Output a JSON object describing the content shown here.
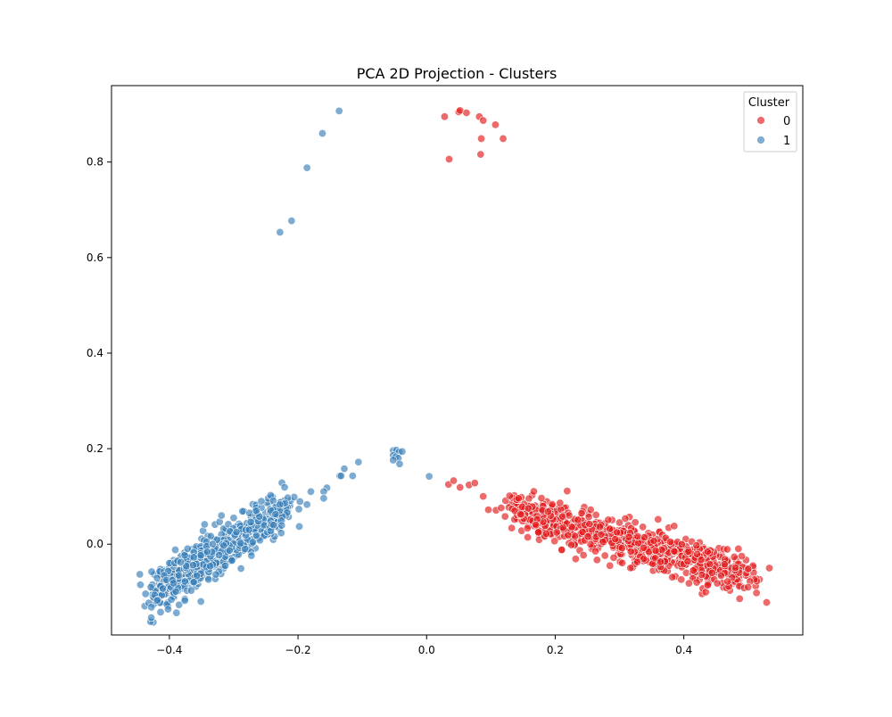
{
  "chart_data": {
    "type": "scatter",
    "title": "PCA 2D Projection - Clusters",
    "xlabel": "",
    "ylabel": "",
    "xlim": [
      -0.49,
      0.585
    ],
    "ylim": [
      -0.19,
      0.96
    ],
    "xticks": [
      -0.4,
      -0.2,
      0.0,
      0.2,
      0.4
    ],
    "yticks": [
      0.0,
      0.2,
      0.4,
      0.6,
      0.8
    ],
    "xtick_labels": [
      "−0.4",
      "−0.2",
      "0.0",
      "0.2",
      "0.4"
    ],
    "ytick_labels": [
      "0.0",
      "0.2",
      "0.4",
      "0.6",
      "0.8"
    ],
    "grid": false,
    "legend": {
      "title": "Cluster",
      "placement": "top-right"
    },
    "series": [
      {
        "name": "0",
        "color": "#e41a1c",
        "points": [
          [
            0.028,
            0.895
          ],
          [
            0.05,
            0.905
          ],
          [
            0.052,
            0.908
          ],
          [
            0.062,
            0.903
          ],
          [
            0.082,
            0.895
          ],
          [
            0.088,
            0.887
          ],
          [
            0.107,
            0.878
          ],
          [
            0.085,
            0.849
          ],
          [
            0.119,
            0.849
          ],
          [
            0.084,
            0.816
          ],
          [
            0.035,
            0.806
          ],
          [
            0.034,
            0.125
          ],
          [
            0.042,
            0.133
          ],
          [
            0.052,
            0.119
          ],
          [
            0.066,
            0.124
          ],
          [
            0.075,
            0.128
          ],
          [
            0.088,
            0.1
          ],
          [
            0.096,
            0.072
          ],
          [
            0.108,
            0.071
          ],
          [
            0.116,
            0.076
          ],
          [
            0.122,
            0.058
          ],
          [
            0.128,
            0.077
          ],
          [
            0.133,
            0.074
          ],
          [
            0.14,
            0.093
          ],
          [
            0.143,
            0.096
          ],
          [
            0.137,
            0.07
          ],
          [
            0.146,
            0.063
          ],
          [
            0.158,
            0.075
          ],
          [
            0.17,
            0.04
          ],
          [
            0.174,
            0.025
          ],
          [
            0.186,
            0.022
          ],
          [
            0.21,
            -0.012
          ],
          [
            0.22,
            0.019
          ],
          [
            0.244,
            -0.023
          ],
          [
            0.265,
            -0.033
          ],
          [
            0.285,
            -0.045
          ],
          [
            0.36,
            0.052
          ],
          [
            0.385,
            0.038
          ],
          [
            0.5,
            -0.09
          ],
          [
            0.513,
            -0.102
          ],
          [
            0.533,
            -0.05
          ],
          [
            0.5,
            -0.052
          ],
          [
            0.49,
            -0.025
          ],
          [
            0.475,
            -0.07
          ],
          [
            0.468,
            -0.078
          ],
          [
            0.452,
            -0.082
          ],
          [
            0.437,
            -0.086
          ],
          [
            0.42,
            -0.08
          ],
          [
            0.408,
            -0.082
          ],
          [
            0.396,
            -0.074
          ],
          [
            0.382,
            -0.069
          ],
          [
            0.458,
            -0.066
          ],
          [
            0.444,
            -0.06
          ],
          [
            0.428,
            -0.064
          ],
          [
            0.415,
            -0.055
          ]
        ],
        "cloud": {
          "x_range": [
            0.14,
            0.5
          ],
          "y_at_x_start": 0.068,
          "y_at_x_end": -0.066,
          "spread": 0.02,
          "count": 760
        }
      },
      {
        "name": "1",
        "color": "#377eb8",
        "points": [
          [
            -0.136,
            0.907
          ],
          [
            -0.162,
            0.86
          ],
          [
            -0.186,
            0.788
          ],
          [
            -0.21,
            0.677
          ],
          [
            -0.228,
            0.653
          ],
          [
            -0.052,
            0.196
          ],
          [
            -0.047,
            0.197
          ],
          [
            -0.043,
            0.193
          ],
          [
            -0.038,
            0.194
          ],
          [
            -0.052,
            0.186
          ],
          [
            -0.048,
            0.183
          ],
          [
            -0.044,
            0.18
          ],
          [
            -0.052,
            0.176
          ],
          [
            -0.042,
            0.168
          ],
          [
            0.004,
            0.142
          ],
          [
            -0.106,
            0.172
          ],
          [
            -0.115,
            0.143
          ],
          [
            -0.128,
            0.158
          ],
          [
            -0.135,
            0.143
          ],
          [
            -0.133,
            0.143
          ],
          [
            -0.155,
            0.118
          ],
          [
            -0.16,
            0.11
          ],
          [
            -0.16,
            0.096
          ],
          [
            -0.18,
            0.11
          ],
          [
            -0.186,
            0.083
          ],
          [
            -0.198,
            0.037
          ],
          [
            -0.22,
            0.086
          ],
          [
            -0.228,
            0.083
          ],
          [
            -0.235,
            0.063
          ],
          [
            -0.446,
            -0.063
          ],
          [
            -0.445,
            -0.085
          ],
          [
            -0.437,
            -0.104
          ],
          [
            -0.432,
            -0.123
          ],
          [
            -0.428,
            -0.132
          ],
          [
            -0.419,
            -0.118
          ],
          [
            -0.414,
            -0.088
          ],
          [
            -0.41,
            -0.093
          ],
          [
            -0.404,
            -0.126
          ],
          [
            -0.402,
            -0.136
          ],
          [
            -0.397,
            -0.116
          ],
          [
            -0.39,
            -0.099
          ],
          [
            -0.385,
            -0.127
          ],
          [
            -0.376,
            -0.118
          ],
          [
            -0.366,
            -0.097
          ],
          [
            -0.351,
            -0.12
          ],
          [
            -0.319,
            0.06
          ],
          [
            -0.276,
            0.03
          ],
          [
            -0.26,
            0.058
          ],
          [
            -0.257,
            0.09
          ],
          [
            -0.265,
            0.07
          ],
          [
            -0.3,
            0.055
          ],
          [
            -0.238,
            0.04
          ]
        ],
        "cloud": {
          "x_range": [
            -0.42,
            -0.22
          ],
          "y_at_x_start": -0.092,
          "y_at_x_end": 0.068,
          "spread": 0.022,
          "count": 640
        }
      }
    ]
  }
}
